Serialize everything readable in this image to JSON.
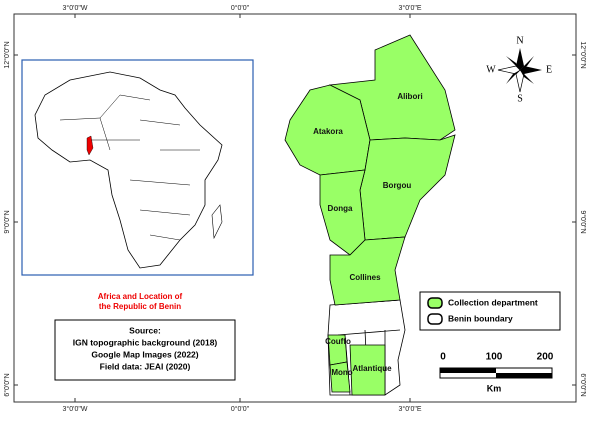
{
  "grid_labels": {
    "top": [
      "3°0'0\"W",
      "0°0'0\"",
      "3°0'0\"E"
    ],
    "bottom": [
      "3°0'0\"W",
      "0°0'0\"",
      "3°0'0\"E"
    ],
    "left": [
      "12°0'0\"N",
      "9°0'0\"N",
      "6°0'0\"N"
    ],
    "right": [
      "12°0'0\"N",
      "9°0'0\"N",
      "6°0'0\"N"
    ]
  },
  "departments": [
    "Alibori",
    "Atakora",
    "Borgou",
    "Donga",
    "Collines",
    "Couffo",
    "Mono",
    "Atlantique"
  ],
  "inset": {
    "caption": [
      "Africa and Location of",
      "the Republic of Benin"
    ]
  },
  "source": {
    "title": "Source:",
    "lines": [
      "IGN topographic background (2018)",
      "Google Map Images (2022)",
      "Field data: JEAI (2020)"
    ]
  },
  "legend": [
    "Collection department",
    "Benin boundary"
  ],
  "scale": {
    "ticks": [
      "0",
      "100",
      "200"
    ],
    "unit": "Km"
  },
  "compass": {
    "north": "N",
    "south": "S",
    "east": "E",
    "west": "W"
  }
}
